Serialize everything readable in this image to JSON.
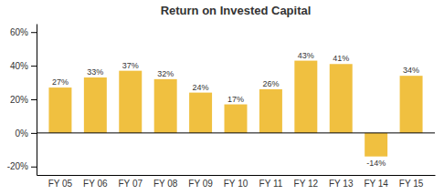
{
  "chart_data": {
    "type": "bar",
    "title": "Return on Invested Capital",
    "categories": [
      "FY 05",
      "FY 06",
      "FY 07",
      "FY 08",
      "FY 09",
      "FY 10",
      "FY 11",
      "FY 12",
      "FY 13",
      "FY 14",
      "FY 15"
    ],
    "values": [
      27,
      33,
      37,
      32,
      24,
      17,
      26,
      43,
      41,
      -14,
      34
    ],
    "value_labels": [
      "27%",
      "33%",
      "37%",
      "32%",
      "24%",
      "17%",
      "26%",
      "43%",
      "41%",
      "-14%",
      "34%"
    ],
    "data_labels": true,
    "color": "#F0C040",
    "ylim": [
      -25,
      65
    ],
    "yticks": [
      {
        "value": -20,
        "label": "-20%"
      },
      {
        "value": 0,
        "label": "0%"
      },
      {
        "value": 20,
        "label": "20%"
      },
      {
        "value": 40,
        "label": "40%"
      },
      {
        "value": 60,
        "label": "60%"
      }
    ],
    "grid": false
  }
}
